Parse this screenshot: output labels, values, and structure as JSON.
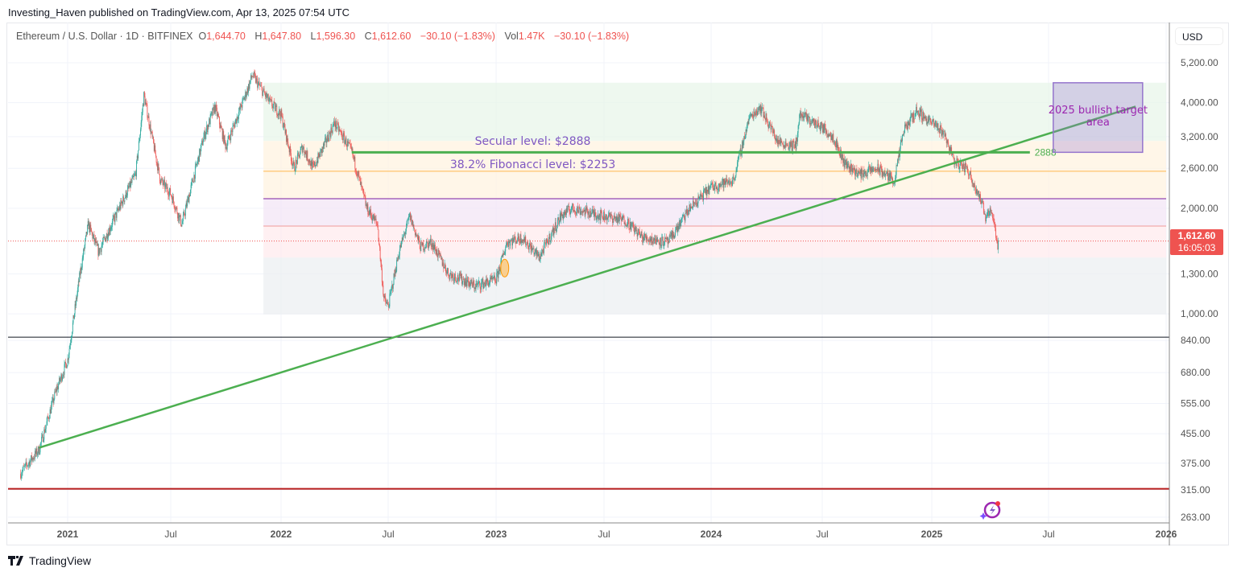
{
  "publisher_line": "Investing_Haven published on TradingView.com, Apr 13, 2025 07:54 UTC",
  "legend": {
    "symbol": "Ethereum / U.S. Dollar · 1D · BITFINEX",
    "open_label": "O",
    "open": "1,644.70",
    "high_label": "H",
    "high": "1,647.80",
    "low_label": "L",
    "low": "1,596.30",
    "close_label": "C",
    "close": "1,612.60",
    "change": "−30.10 (−1.83%)",
    "vol_label": "Vol",
    "vol": "1.47K",
    "vol_change": "−30.10 (−1.83%)"
  },
  "currency_button": "USD",
  "price_tag": {
    "price": "1,612.60",
    "countdown": "16:05:03",
    "color": "#ef5350"
  },
  "branding": "TradingView",
  "colors": {
    "up": "#26a69a",
    "down": "#ef5350",
    "trendline": "#4caf50",
    "annotation_text": "#7e57c2",
    "target_box": "#9575cd",
    "target_text": "#9c27b0"
  },
  "icons": {
    "assistant": "sparkle-lightning-icon",
    "logo": "tradingview-logo-icon"
  },
  "chart_data": {
    "type": "candlestick",
    "scale": "log",
    "ylim": [
      250,
      5600
    ],
    "xlim": [
      "2020-10",
      "2026-02"
    ],
    "y_ticks": [
      5200,
      4000,
      3200,
      2600,
      2000,
      1300,
      1000,
      840,
      680,
      555,
      455,
      375,
      315,
      263
    ],
    "y_tick_labels": [
      "5,200.00",
      "4,000.00",
      "3,200.00",
      "2,600.00",
      "2,000.00",
      "1,300.00",
      "1,000.00",
      "840.00",
      "680.00",
      "555.00",
      "455.00",
      "375.00",
      "315.00",
      "263.00"
    ],
    "x_ticks": [
      {
        "t": 2021.0,
        "label": "2021",
        "major": true
      },
      {
        "t": 2021.5,
        "label": "Jul",
        "major": false
      },
      {
        "t": 2022.0,
        "label": "2022",
        "major": true
      },
      {
        "t": 2022.5,
        "label": "Jul",
        "major": false
      },
      {
        "t": 2023.0,
        "label": "2023",
        "major": true
      },
      {
        "t": 2023.5,
        "label": "Jul",
        "major": false
      },
      {
        "t": 2024.0,
        "label": "2024",
        "major": true
      },
      {
        "t": 2024.5,
        "label": "Jul",
        "major": false
      },
      {
        "t": 2025.0,
        "label": "2025",
        "major": true
      },
      {
        "t": 2025.5,
        "label": "Jul",
        "major": false
      },
      {
        "t": 2026.0,
        "label": "2026",
        "major": true
      }
    ],
    "grid": true,
    "price_path": [
      [
        2020.8,
        350
      ],
      [
        2020.88,
        410
      ],
      [
        2020.95,
        600
      ],
      [
        2021.0,
        740
      ],
      [
        2021.06,
        1300
      ],
      [
        2021.1,
        1800
      ],
      [
        2021.15,
        1500
      ],
      [
        2021.25,
        2000
      ],
      [
        2021.33,
        2500
      ],
      [
        2021.37,
        4200
      ],
      [
        2021.45,
        2400
      ],
      [
        2021.5,
        2200
      ],
      [
        2021.55,
        1800
      ],
      [
        2021.65,
        3200
      ],
      [
        2021.7,
        3900
      ],
      [
        2021.75,
        3000
      ],
      [
        2021.85,
        4400
      ],
      [
        2021.87,
        4800
      ],
      [
        2021.95,
        4000
      ],
      [
        2022.0,
        3700
      ],
      [
        2022.06,
        2600
      ],
      [
        2022.1,
        3000
      ],
      [
        2022.15,
        2600
      ],
      [
        2022.25,
        3500
      ],
      [
        2022.33,
        2900
      ],
      [
        2022.4,
        2000
      ],
      [
        2022.45,
        1800
      ],
      [
        2022.48,
        1100
      ],
      [
        2022.5,
        1050
      ],
      [
        2022.55,
        1500
      ],
      [
        2022.6,
        1900
      ],
      [
        2022.65,
        1550
      ],
      [
        2022.7,
        1600
      ],
      [
        2022.78,
        1300
      ],
      [
        2022.85,
        1250
      ],
      [
        2022.9,
        1200
      ],
      [
        2023.0,
        1250
      ],
      [
        2023.05,
        1600
      ],
      [
        2023.12,
        1650
      ],
      [
        2023.2,
        1450
      ],
      [
        2023.3,
        1900
      ],
      [
        2023.35,
        2000
      ],
      [
        2023.5,
        1900
      ],
      [
        2023.6,
        1850
      ],
      [
        2023.68,
        1650
      ],
      [
        2023.8,
        1600
      ],
      [
        2023.9,
        2000
      ],
      [
        2024.0,
        2300
      ],
      [
        2024.1,
        2400
      ],
      [
        2024.17,
        3600
      ],
      [
        2024.22,
        3900
      ],
      [
        2024.3,
        3100
      ],
      [
        2024.38,
        3000
      ],
      [
        2024.4,
        3700
      ],
      [
        2024.5,
        3400
      ],
      [
        2024.55,
        3200
      ],
      [
        2024.6,
        2700
      ],
      [
        2024.67,
        2500
      ],
      [
        2024.75,
        2600
      ],
      [
        2024.83,
        2400
      ],
      [
        2024.87,
        3300
      ],
      [
        2024.93,
        3800
      ],
      [
        2025.0,
        3500
      ],
      [
        2025.05,
        3300
      ],
      [
        2025.1,
        2700
      ],
      [
        2025.15,
        2600
      ],
      [
        2025.2,
        2200
      ],
      [
        2025.23,
        1900
      ],
      [
        2025.25,
        2000
      ],
      [
        2025.27,
        1800
      ],
      [
        2025.28,
        1550
      ],
      [
        2025.285,
        1612.6
      ]
    ],
    "last_price": 1612.6,
    "drawings": {
      "fib_bands": {
        "t_start": 2021.92,
        "t_end": 2026.0,
        "levels": [
          4560,
          3110,
          2550,
          2130,
          1780,
          1447,
          996
        ],
        "fills": [
          "#e8f5e9",
          "#fff3e0",
          "#fff3e0",
          "#f3e5f5",
          "#ffebee",
          "#eceff1"
        ],
        "lines": [
          null,
          null,
          "#ffb74d",
          "#7b1fa2",
          "#ef9a9a",
          null,
          null
        ]
      },
      "secular_line": {
        "price": 2888,
        "t_start": 2022.33,
        "t_end": 2025.42,
        "label": "2888"
      },
      "trendline": {
        "from": [
          2020.88,
          415
        ],
        "to": [
          2025.87,
          3900
        ]
      },
      "support_line": {
        "price": 858,
        "color": "#131722"
      },
      "bottom_line": {
        "price": 317,
        "color": "#b71c1c"
      },
      "target_box": {
        "t_start": 2025.52,
        "t_end": 2025.9,
        "top": 4560,
        "bottom": 2888,
        "text_line1": "2025 bullish target",
        "text_line2": "area"
      },
      "annotations": [
        {
          "text": "Secular level: $2888",
          "t": 2023.17,
          "price": 3030
        },
        {
          "text": "38.2% Fibonacci level: $2253",
          "t": 2023.17,
          "price": 2600
        }
      ],
      "ellipse": {
        "t": 2023.04,
        "price": 1350
      }
    }
  }
}
